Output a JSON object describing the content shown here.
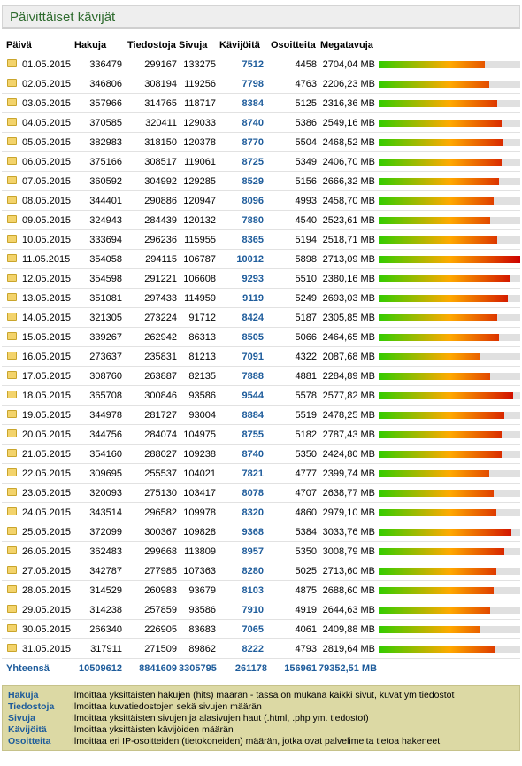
{
  "title": "Päivittäiset kävijät",
  "headers": [
    "Päivä",
    "Hakuja",
    "Tiedostoja",
    "Sivuja",
    "Kävijöitä",
    "Osoitteita",
    "Megatavuja"
  ],
  "rows": [
    {
      "day": "01.05.2015",
      "hakuja": "336479",
      "tiedostoja": "299167",
      "sivuja": "133275",
      "kavijoita": "7512",
      "osoitteita": "4458",
      "mb": "2704,04 MB",
      "bar": 0.75
    },
    {
      "day": "02.05.2015",
      "hakuja": "346806",
      "tiedostoja": "308194",
      "sivuja": "119256",
      "kavijoita": "7798",
      "osoitteita": "4763",
      "mb": "2206,23 MB",
      "bar": 0.78
    },
    {
      "day": "03.05.2015",
      "hakuja": "357966",
      "tiedostoja": "314765",
      "sivuja": "118717",
      "kavijoita": "8384",
      "osoitteita": "5125",
      "mb": "2316,36 MB",
      "bar": 0.84
    },
    {
      "day": "04.05.2015",
      "hakuja": "370585",
      "tiedostoja": "320411",
      "sivuja": "129033",
      "kavijoita": "8740",
      "osoitteita": "5386",
      "mb": "2549,16 MB",
      "bar": 0.87
    },
    {
      "day": "05.05.2015",
      "hakuja": "382983",
      "tiedostoja": "318150",
      "sivuja": "120378",
      "kavijoita": "8770",
      "osoitteita": "5504",
      "mb": "2468,52 MB",
      "bar": 0.88
    },
    {
      "day": "06.05.2015",
      "hakuja": "375166",
      "tiedostoja": "308517",
      "sivuja": "119061",
      "kavijoita": "8725",
      "osoitteita": "5349",
      "mb": "2406,70 MB",
      "bar": 0.87
    },
    {
      "day": "07.05.2015",
      "hakuja": "360592",
      "tiedostoja": "304992",
      "sivuja": "129285",
      "kavijoita": "8529",
      "osoitteita": "5156",
      "mb": "2666,32 MB",
      "bar": 0.85
    },
    {
      "day": "08.05.2015",
      "hakuja": "344401",
      "tiedostoja": "290886",
      "sivuja": "120947",
      "kavijoita": "8096",
      "osoitteita": "4993",
      "mb": "2458,70 MB",
      "bar": 0.81
    },
    {
      "day": "09.05.2015",
      "hakuja": "324943",
      "tiedostoja": "284439",
      "sivuja": "120132",
      "kavijoita": "7880",
      "osoitteita": "4540",
      "mb": "2523,61 MB",
      "bar": 0.79
    },
    {
      "day": "10.05.2015",
      "hakuja": "333694",
      "tiedostoja": "296236",
      "sivuja": "115955",
      "kavijoita": "8365",
      "osoitteita": "5194",
      "mb": "2518,71 MB",
      "bar": 0.84
    },
    {
      "day": "11.05.2015",
      "hakuja": "354058",
      "tiedostoja": "294115",
      "sivuja": "106787",
      "kavijoita": "10012",
      "osoitteita": "5898",
      "mb": "2713,09 MB",
      "bar": 1.0
    },
    {
      "day": "12.05.2015",
      "hakuja": "354598",
      "tiedostoja": "291221",
      "sivuja": "106608",
      "kavijoita": "9293",
      "osoitteita": "5510",
      "mb": "2380,16 MB",
      "bar": 0.93
    },
    {
      "day": "13.05.2015",
      "hakuja": "351081",
      "tiedostoja": "297433",
      "sivuja": "114959",
      "kavijoita": "9119",
      "osoitteita": "5249",
      "mb": "2693,03 MB",
      "bar": 0.91
    },
    {
      "day": "14.05.2015",
      "hakuja": "321305",
      "tiedostoja": "273224",
      "sivuja": "91712",
      "kavijoita": "8424",
      "osoitteita": "5187",
      "mb": "2305,85 MB",
      "bar": 0.84
    },
    {
      "day": "15.05.2015",
      "hakuja": "339267",
      "tiedostoja": "262942",
      "sivuja": "86313",
      "kavijoita": "8505",
      "osoitteita": "5066",
      "mb": "2464,65 MB",
      "bar": 0.85
    },
    {
      "day": "16.05.2015",
      "hakuja": "273637",
      "tiedostoja": "235831",
      "sivuja": "81213",
      "kavijoita": "7091",
      "osoitteita": "4322",
      "mb": "2087,68 MB",
      "bar": 0.71
    },
    {
      "day": "17.05.2015",
      "hakuja": "308760",
      "tiedostoja": "263887",
      "sivuja": "82135",
      "kavijoita": "7888",
      "osoitteita": "4881",
      "mb": "2284,89 MB",
      "bar": 0.79
    },
    {
      "day": "18.05.2015",
      "hakuja": "365708",
      "tiedostoja": "300846",
      "sivuja": "93586",
      "kavijoita": "9544",
      "osoitteita": "5578",
      "mb": "2577,82 MB",
      "bar": 0.95
    },
    {
      "day": "19.05.2015",
      "hakuja": "344978",
      "tiedostoja": "281727",
      "sivuja": "93004",
      "kavijoita": "8884",
      "osoitteita": "5519",
      "mb": "2478,25 MB",
      "bar": 0.89
    },
    {
      "day": "20.05.2015",
      "hakuja": "344756",
      "tiedostoja": "284074",
      "sivuja": "104975",
      "kavijoita": "8755",
      "osoitteita": "5182",
      "mb": "2787,43 MB",
      "bar": 0.87
    },
    {
      "day": "21.05.2015",
      "hakuja": "354160",
      "tiedostoja": "288027",
      "sivuja": "109238",
      "kavijoita": "8740",
      "osoitteita": "5350",
      "mb": "2424,80 MB",
      "bar": 0.87
    },
    {
      "day": "22.05.2015",
      "hakuja": "309695",
      "tiedostoja": "255537",
      "sivuja": "104021",
      "kavijoita": "7821",
      "osoitteita": "4777",
      "mb": "2399,74 MB",
      "bar": 0.78
    },
    {
      "day": "23.05.2015",
      "hakuja": "320093",
      "tiedostoja": "275130",
      "sivuja": "103417",
      "kavijoita": "8078",
      "osoitteita": "4707",
      "mb": "2638,77 MB",
      "bar": 0.81
    },
    {
      "day": "24.05.2015",
      "hakuja": "343514",
      "tiedostoja": "296582",
      "sivuja": "109978",
      "kavijoita": "8320",
      "osoitteita": "4860",
      "mb": "2979,10 MB",
      "bar": 0.83
    },
    {
      "day": "25.05.2015",
      "hakuja": "372099",
      "tiedostoja": "300367",
      "sivuja": "109828",
      "kavijoita": "9368",
      "osoitteita": "5384",
      "mb": "3033,76 MB",
      "bar": 0.94
    },
    {
      "day": "26.05.2015",
      "hakuja": "362483",
      "tiedostoja": "299668",
      "sivuja": "113809",
      "kavijoita": "8957",
      "osoitteita": "5350",
      "mb": "3008,79 MB",
      "bar": 0.89
    },
    {
      "day": "27.05.2015",
      "hakuja": "342787",
      "tiedostoja": "277985",
      "sivuja": "107363",
      "kavijoita": "8280",
      "osoitteita": "5025",
      "mb": "2713,60 MB",
      "bar": 0.83
    },
    {
      "day": "28.05.2015",
      "hakuja": "314529",
      "tiedostoja": "260983",
      "sivuja": "93679",
      "kavijoita": "8103",
      "osoitteita": "4875",
      "mb": "2688,60 MB",
      "bar": 0.81
    },
    {
      "day": "29.05.2015",
      "hakuja": "314238",
      "tiedostoja": "257859",
      "sivuja": "93586",
      "kavijoita": "7910",
      "osoitteita": "4919",
      "mb": "2644,63 MB",
      "bar": 0.79
    },
    {
      "day": "30.05.2015",
      "hakuja": "266340",
      "tiedostoja": "226905",
      "sivuja": "83683",
      "kavijoita": "7065",
      "osoitteita": "4061",
      "mb": "2409,88 MB",
      "bar": 0.71
    },
    {
      "day": "31.05.2015",
      "hakuja": "317911",
      "tiedostoja": "271509",
      "sivuja": "89862",
      "kavijoita": "8222",
      "osoitteita": "4793",
      "mb": "2819,64 MB",
      "bar": 0.82
    }
  ],
  "total": {
    "label": "Yhteensä",
    "hakuja": "10509612",
    "tiedostoja": "8841609",
    "sivuja": "3305795",
    "kavijoita": "261178",
    "osoitteita": "156961",
    "mb": "79352,51 MB"
  },
  "legend": [
    {
      "term": "Hakuja",
      "desc": "Ilmoittaa yksittäisten hakujen (hits) määrän - tässä on mukana kaikki sivut, kuvat ym tiedostot"
    },
    {
      "term": "Tiedostoja",
      "desc": "Ilmoittaa kuvatiedostojen sekä sivujen määrän"
    },
    {
      "term": "Sivuja",
      "desc": "Ilmoittaa yksittäisten sivujen ja alasivujen haut (.html, .php ym. tiedostot)"
    },
    {
      "term": "Kävijöitä",
      "desc": "Ilmoittaa yksittäisten kävijöiden määrän"
    },
    {
      "term": "Osoitteita",
      "desc": "Ilmoittaa eri IP-osoitteiden (tietokoneiden) määrän, jotka ovat palvelimelta tietoa hakeneet"
    }
  ],
  "colors": {
    "title_text": "#2e6b2e",
    "link_blue": "#1e5c9b",
    "legend_bg": "#dcd9a4",
    "bar_start": "#33cc00",
    "bar_mid": "#ffaa00",
    "bar_end": "#cc0000"
  }
}
